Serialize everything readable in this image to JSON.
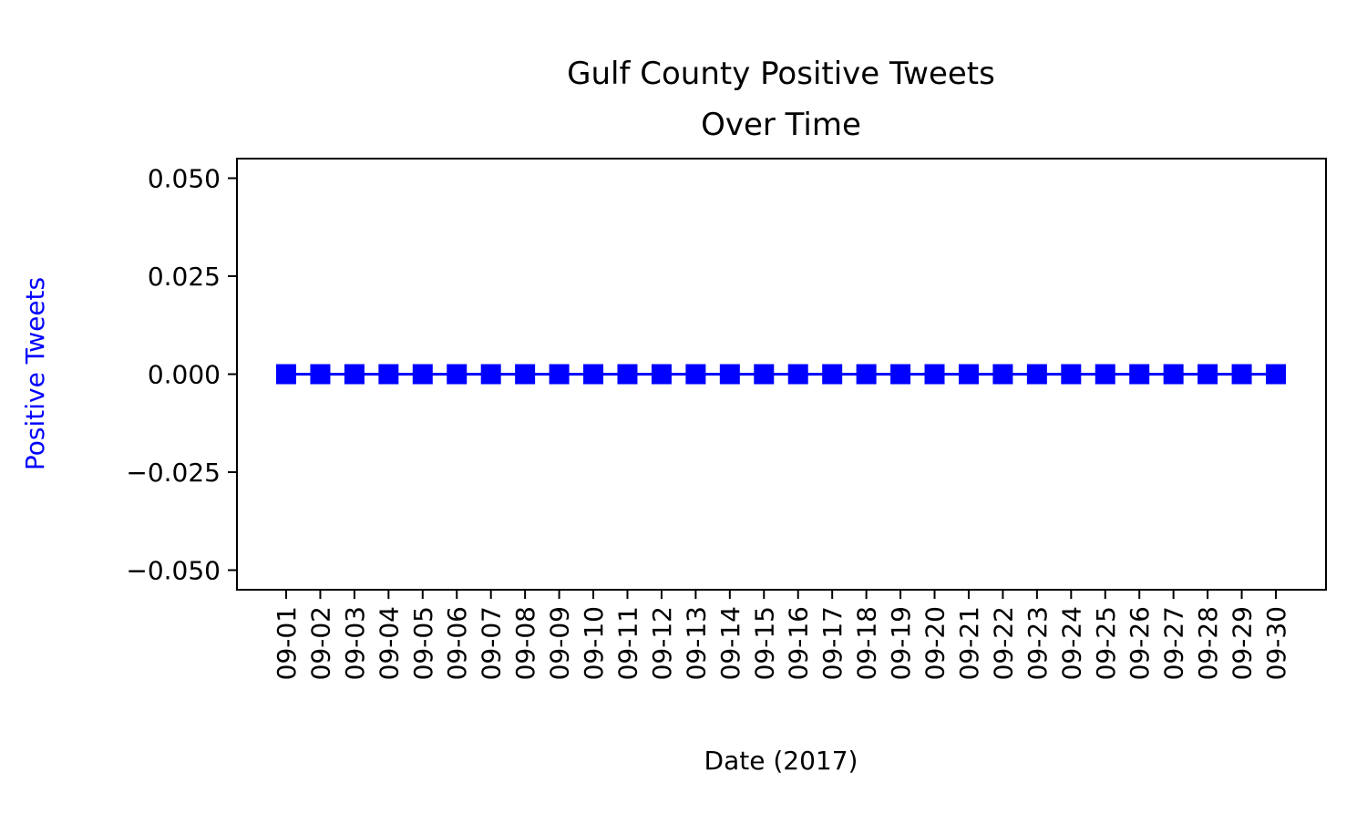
{
  "chart_data": {
    "type": "line",
    "title_lines": [
      "Gulf County Positive Tweets",
      "Over Time"
    ],
    "xlabel": "Date (2017)",
    "ylabel": "Positive Tweets",
    "x": [
      "09-01",
      "09-02",
      "09-03",
      "09-04",
      "09-05",
      "09-06",
      "09-07",
      "09-08",
      "09-09",
      "09-10",
      "09-11",
      "09-12",
      "09-13",
      "09-14",
      "09-15",
      "09-16",
      "09-17",
      "09-18",
      "09-19",
      "09-20",
      "09-21",
      "09-22",
      "09-23",
      "09-24",
      "09-25",
      "09-26",
      "09-27",
      "09-28",
      "09-29",
      "09-30"
    ],
    "series": [
      {
        "values": [
          0,
          0,
          0,
          0,
          0,
          0,
          0,
          0,
          0,
          0,
          0,
          0,
          0,
          0,
          0,
          0,
          0,
          0,
          0,
          0,
          0,
          0,
          0,
          0,
          0,
          0,
          0,
          0,
          0,
          0
        ],
        "color": "#0000ff",
        "marker": "square"
      }
    ],
    "yticks": [
      "0.050",
      "0.025",
      "0.000",
      "−0.025",
      "−0.050"
    ],
    "ytick_values": [
      0.05,
      0.025,
      0,
      -0.025,
      -0.05
    ],
    "ylim": [
      -0.055,
      0.055
    ],
    "grid": false,
    "ylabel_color": "#0000ff"
  }
}
